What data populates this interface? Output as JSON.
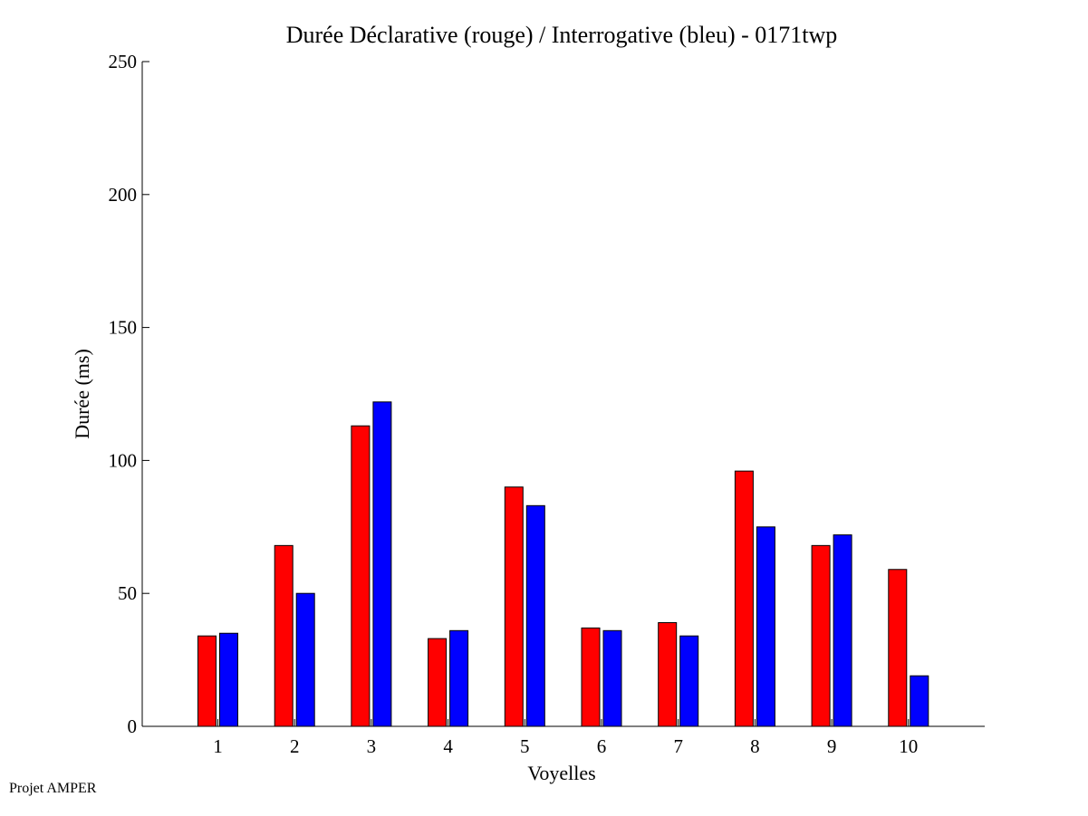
{
  "chart_data": {
    "type": "bar",
    "title": "Durée Déclarative (rouge) / Interrogative (bleu) - 0171twp",
    "xlabel": "Voyelles",
    "ylabel": "Durée (ms)",
    "ylim": [
      0,
      250
    ],
    "yticks": [
      0,
      50,
      100,
      150,
      200,
      250
    ],
    "categories": [
      "1",
      "2",
      "3",
      "4",
      "5",
      "6",
      "7",
      "8",
      "9",
      "10"
    ],
    "series": [
      {
        "color": "#ff0000",
        "values": [
          34,
          68,
          113,
          33,
          90,
          37,
          39,
          96,
          68,
          59
        ]
      },
      {
        "color": "#0000ff",
        "values": [
          35,
          50,
          122,
          36,
          83,
          36,
          34,
          75,
          72,
          19
        ]
      }
    ],
    "grid": false,
    "legend": "none"
  },
  "footer": {
    "text": "Projet AMPER"
  }
}
